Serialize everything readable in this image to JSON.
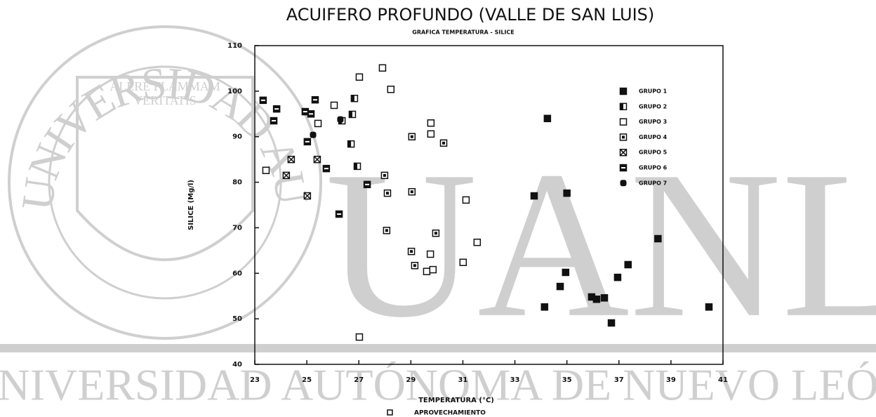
{
  "watermark": {
    "seal_text": "UNIVERSIDAD AUTONOMA DE NUEVO LEON",
    "motto_1": "ALERE FLAMMAM",
    "motto_2": "VERITATIS",
    "big": "UANL",
    "bottom": "UNIVERSIDAD AUTÓNOMA DE NUEVO LEÓN"
  },
  "chart_data": {
    "type": "scatter",
    "title": "ACUIFERO PROFUNDO (VALLE DE SAN LUIS)",
    "subtitle": "GRAFICA TEMPERATURA - SILICE",
    "x_label": "TEMPERATURA (°C)",
    "y_label": "SILICE (Mg/l)",
    "note": "APROVECHAMIENTO",
    "xlim": [
      23,
      41
    ],
    "xticks": [
      23,
      25,
      27,
      29,
      31,
      33,
      35,
      37,
      39,
      41
    ],
    "ylim": [
      40,
      110
    ],
    "yticks": [
      40,
      50,
      60,
      70,
      80,
      90,
      100,
      110
    ],
    "legend": "upper right",
    "series": [
      {
        "name": "GRUPO 1",
        "color": "#111111",
        "marker": "filled",
        "x": [
          34.25,
          33.74,
          35.0,
          38.5,
          37.35,
          36.95,
          34.95,
          34.74,
          35.95,
          36.14,
          36.44,
          36.71,
          34.14,
          40.46
        ],
        "values": [
          94.0,
          77.0,
          77.6,
          67.6,
          61.9,
          59.1,
          60.2,
          57.1,
          54.8,
          54.3,
          54.6,
          49.1,
          52.6,
          52.6
        ]
      },
      {
        "name": "GRUPO 2",
        "color": "#111111",
        "marker": "half",
        "x": [
          26.83,
          26.75,
          26.35,
          26.7,
          26.94
        ],
        "values": [
          98.4,
          94.9,
          93.5,
          88.4,
          83.5
        ]
      },
      {
        "name": "GRUPO 3",
        "color": "#111111",
        "marker": "open",
        "x": [
          27.91,
          28.23,
          27.02,
          26.05,
          29.77,
          29.77,
          31.12,
          31.55,
          31.01,
          29.75,
          29.61,
          29.85,
          27.02,
          25.43,
          23.43
        ],
        "values": [
          105.1,
          100.4,
          103.1,
          96.9,
          93.0,
          90.6,
          76.1,
          66.8,
          62.4,
          64.2,
          60.4,
          60.8,
          46.0,
          92.9,
          82.6
        ]
      },
      {
        "name": "GRUPO 4",
        "color": "#111111",
        "marker": "dot",
        "x": [
          28.07,
          28.1,
          27.99,
          29.02,
          29.15,
          29.96,
          30.26,
          29.04,
          29.04
        ],
        "values": [
          69.4,
          77.6,
          81.5,
          64.8,
          61.7,
          68.8,
          88.6,
          90.0,
          77.9
        ]
      },
      {
        "name": "GRUPO 5",
        "color": "#111111",
        "marker": "cross",
        "x": [
          24.4,
          24.21,
          25.02,
          25.4
        ],
        "values": [
          85.0,
          81.5,
          77.0,
          85.0
        ]
      },
      {
        "name": "GRUPO 6",
        "color": "#111111",
        "marker": "band",
        "x": [
          23.32,
          23.73,
          23.84,
          25.02,
          24.94,
          25.16,
          25.32,
          25.75,
          26.24,
          27.32
        ],
        "values": [
          98.0,
          93.5,
          96.1,
          88.9,
          95.5,
          95.0,
          98.1,
          83.0,
          73.0,
          79.5
        ]
      },
      {
        "name": "GRUPO 7",
        "color": "#111111",
        "marker": "round",
        "x": [
          26.29,
          25.24
        ],
        "values": [
          93.8,
          90.4
        ]
      }
    ]
  }
}
